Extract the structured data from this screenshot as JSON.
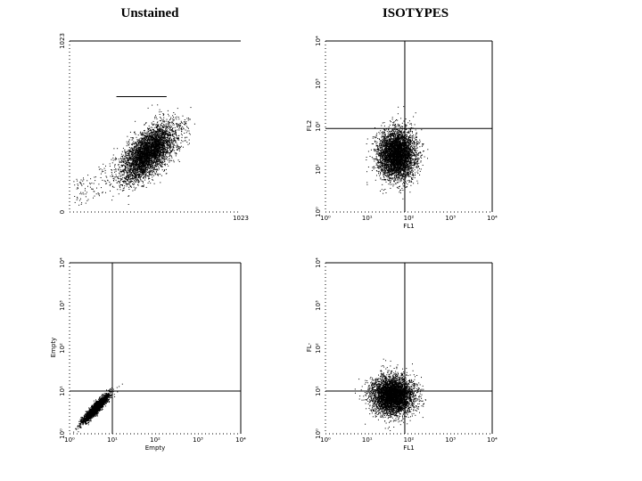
{
  "titles": {
    "left": "Unstained",
    "right": "ISOTYPES"
  },
  "colors": {
    "ink": "#000000",
    "background": "#ffffff"
  },
  "chart_data": [
    {
      "type": "scatter",
      "panel": "top-left",
      "xlabel": "",
      "ylabel": "",
      "xscale": "linear",
      "yscale": "linear",
      "xlim": [
        0,
        1023
      ],
      "ylim": [
        0,
        1023
      ],
      "x_ticks": [
        {
          "v": 0,
          "label": ""
        },
        {
          "v": 1023,
          "label": "1023"
        }
      ],
      "y_ticks": [
        {
          "v": 0,
          "label": "0"
        },
        {
          "v": 1023,
          "label": "1023"
        }
      ],
      "gate": {
        "x_range": [
          280,
          580
        ],
        "y": 690
      },
      "population": {
        "center": [
          470,
          360
        ],
        "spread": [
          75,
          90
        ],
        "n": 4500,
        "shape": "ellipse-tilted"
      },
      "quadrant": null
    },
    {
      "type": "scatter",
      "panel": "top-right",
      "xlabel": "FL1",
      "ylabel": "FL2",
      "xscale": "log",
      "yscale": "log",
      "xlim": [
        1,
        10000
      ],
      "ylim": [
        1,
        10000
      ],
      "x_ticks": [
        {
          "v": 1,
          "label": "10⁰"
        },
        {
          "v": 10,
          "label": "10¹"
        },
        {
          "v": 100,
          "label": "10²"
        },
        {
          "v": 1000,
          "label": "10³"
        },
        {
          "v": 10000,
          "label": "10⁴"
        }
      ],
      "y_ticks": [
        {
          "v": 1,
          "label": "10⁰"
        },
        {
          "v": 10,
          "label": "10¹"
        },
        {
          "v": 100,
          "label": "10²"
        },
        {
          "v": 1000,
          "label": "10³"
        },
        {
          "v": 10000,
          "label": "10⁴"
        }
      ],
      "quadrant": {
        "x": 80,
        "y": 90
      },
      "population": {
        "center": [
          50,
          22
        ],
        "spread": [
          0.22,
          0.28
        ],
        "n": 4500,
        "shape": "blob"
      }
    },
    {
      "type": "scatter",
      "panel": "bottom-left",
      "xlabel": "Empty",
      "ylabel": "Empty",
      "xscale": "log",
      "yscale": "log",
      "xlim": [
        1,
        10000
      ],
      "ylim": [
        1,
        10000
      ],
      "x_ticks": [
        {
          "v": 1,
          "label": "10⁰"
        },
        {
          "v": 10,
          "label": "10¹"
        },
        {
          "v": 100,
          "label": "10²"
        },
        {
          "v": 1000,
          "label": "10³"
        },
        {
          "v": 10000,
          "label": "10⁴"
        }
      ],
      "y_ticks": [
        {
          "v": 1,
          "label": "10⁰"
        },
        {
          "v": 10,
          "label": "10¹"
        },
        {
          "v": 100,
          "label": "10²"
        },
        {
          "v": 1000,
          "label": "10³"
        },
        {
          "v": 10000,
          "label": "10⁴"
        }
      ],
      "quadrant": {
        "x": 10,
        "y": 10
      },
      "population": {
        "center": [
          4,
          4
        ],
        "spread": [
          0.15,
          0.06
        ],
        "n": 2500,
        "shape": "diagonal"
      }
    },
    {
      "type": "scatter",
      "panel": "bottom-right",
      "xlabel": "FL1",
      "ylabel": "FL-",
      "xscale": "log",
      "yscale": "log",
      "xlim": [
        1,
        10000
      ],
      "ylim": [
        1,
        10000
      ],
      "x_ticks": [
        {
          "v": 1,
          "label": "10⁰"
        },
        {
          "v": 10,
          "label": "10¹"
        },
        {
          "v": 100,
          "label": "10²"
        },
        {
          "v": 1000,
          "label": "10³"
        },
        {
          "v": 10000,
          "label": "10⁴"
        }
      ],
      "y_ticks": [
        {
          "v": 1,
          "label": "10⁰"
        },
        {
          "v": 10,
          "label": "10¹"
        },
        {
          "v": 100,
          "label": "10²"
        },
        {
          "v": 1000,
          "label": "10³"
        },
        {
          "v": 10000,
          "label": "10⁴"
        }
      ],
      "quadrant": {
        "x": 80,
        "y": 10
      },
      "population": {
        "center": [
          40,
          8
        ],
        "spread": [
          0.25,
          0.22
        ],
        "n": 4500,
        "shape": "blob"
      }
    }
  ]
}
